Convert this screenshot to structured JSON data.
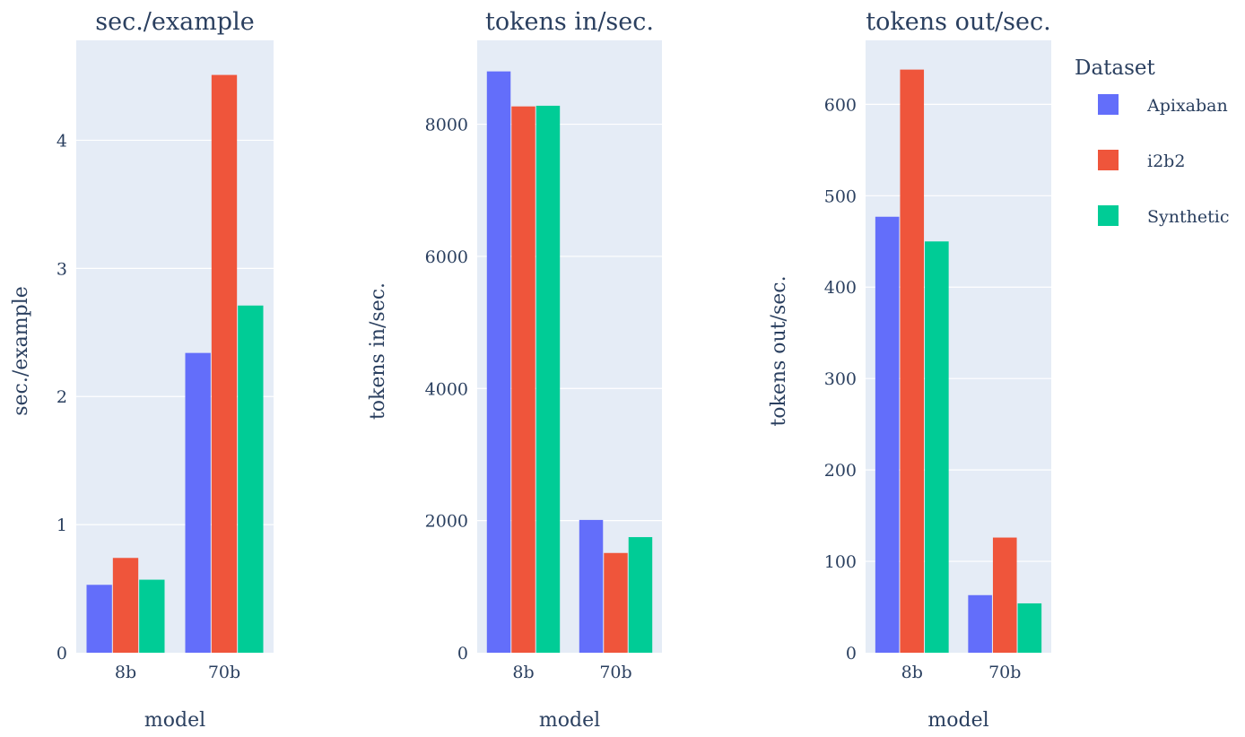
{
  "legend": {
    "title": "Dataset",
    "items": [
      {
        "label": "Apixaban",
        "color": "#636efa"
      },
      {
        "label": "i2b2",
        "color": "#ef553b"
      },
      {
        "label": "Synthetic",
        "color": "#00cc96"
      }
    ]
  },
  "chart_data": [
    {
      "type": "bar",
      "title": "sec./example",
      "xlabel": "model",
      "ylabel": "sec./example",
      "categories": [
        "8b",
        "70b"
      ],
      "ylim": [
        0,
        4.78
      ],
      "yticks": [
        0,
        1,
        2,
        3,
        4
      ],
      "grid": true,
      "series": [
        {
          "name": "Apixaban",
          "values": [
            0.53,
            2.34
          ]
        },
        {
          "name": "i2b2",
          "values": [
            0.74,
            4.51
          ]
        },
        {
          "name": "Synthetic",
          "values": [
            0.57,
            2.71
          ]
        }
      ]
    },
    {
      "type": "bar",
      "title": "tokens in/sec.",
      "xlabel": "model",
      "ylabel": "tokens in/sec.",
      "categories": [
        "8b",
        "70b"
      ],
      "ylim": [
        0,
        9270
      ],
      "yticks": [
        0,
        2000,
        4000,
        6000,
        8000
      ],
      "grid": true,
      "series": [
        {
          "name": "Apixaban",
          "values": [
            8800,
            2010
          ]
        },
        {
          "name": "i2b2",
          "values": [
            8270,
            1510
          ]
        },
        {
          "name": "Synthetic",
          "values": [
            8280,
            1750
          ]
        }
      ]
    },
    {
      "type": "bar",
      "title": "tokens out/sec.",
      "xlabel": "model",
      "ylabel": "tokens out/sec.",
      "categories": [
        "8b",
        "70b"
      ],
      "ylim": [
        0,
        670
      ],
      "yticks": [
        0,
        100,
        200,
        300,
        400,
        500,
        600
      ],
      "grid": true,
      "series": [
        {
          "name": "Apixaban",
          "values": [
            477,
            63
          ]
        },
        {
          "name": "i2b2",
          "values": [
            638,
            126
          ]
        },
        {
          "name": "Synthetic",
          "values": [
            450,
            54
          ]
        }
      ]
    }
  ]
}
